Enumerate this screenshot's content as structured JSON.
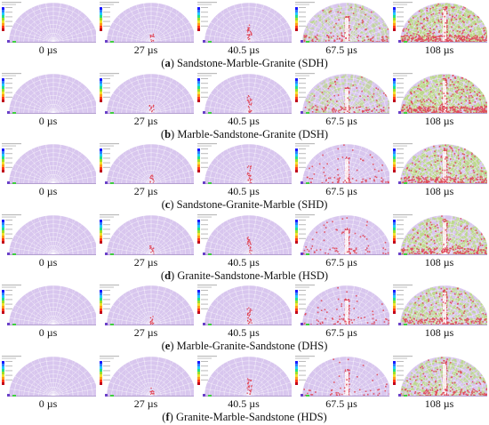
{
  "rows": [
    {
      "letter": "a",
      "label": "Sandstone-Marble-Granite (SDH)",
      "times": [
        "0 µs",
        "27 µs",
        "40.5 µs",
        "67.5 µs",
        "108 µs"
      ]
    },
    {
      "letter": "b",
      "label": "Marble-Sandstone-Granite (DSH)",
      "times": [
        "0 µs",
        "27 µs",
        "40.5 µs",
        "67.5 µs",
        "108 µs"
      ]
    },
    {
      "letter": "c",
      "label": "Sandstone-Granite-Marble (SHD)",
      "times": [
        "0 µs",
        "27 µs",
        "40.5 µs",
        "67.5 µs",
        "108 µs"
      ]
    },
    {
      "letter": "d",
      "label": "Granite-Sandstone-Marble (HSD)",
      "times": [
        "0 µs",
        "27 µs",
        "40.5 µs",
        "67.5 µs",
        "108 µs"
      ]
    },
    {
      "letter": "e",
      "label": "Marble-Granite-Sandstone (DHS)",
      "times": [
        "0 µs",
        "27 µs",
        "40.5 µs",
        "67.5 µs",
        "108 µs"
      ]
    },
    {
      "letter": "f",
      "label": "Granite-Marble-Sandstone (HDS)",
      "times": [
        "0 µs",
        "27 µs",
        "40.5 µs",
        "67.5 µs",
        "108 µs"
      ]
    }
  ],
  "colors": {
    "intact": "#d8c6ee",
    "mesh": "#ffffff",
    "crack": "#e0485a",
    "damaged": "#bcd98a"
  }
}
